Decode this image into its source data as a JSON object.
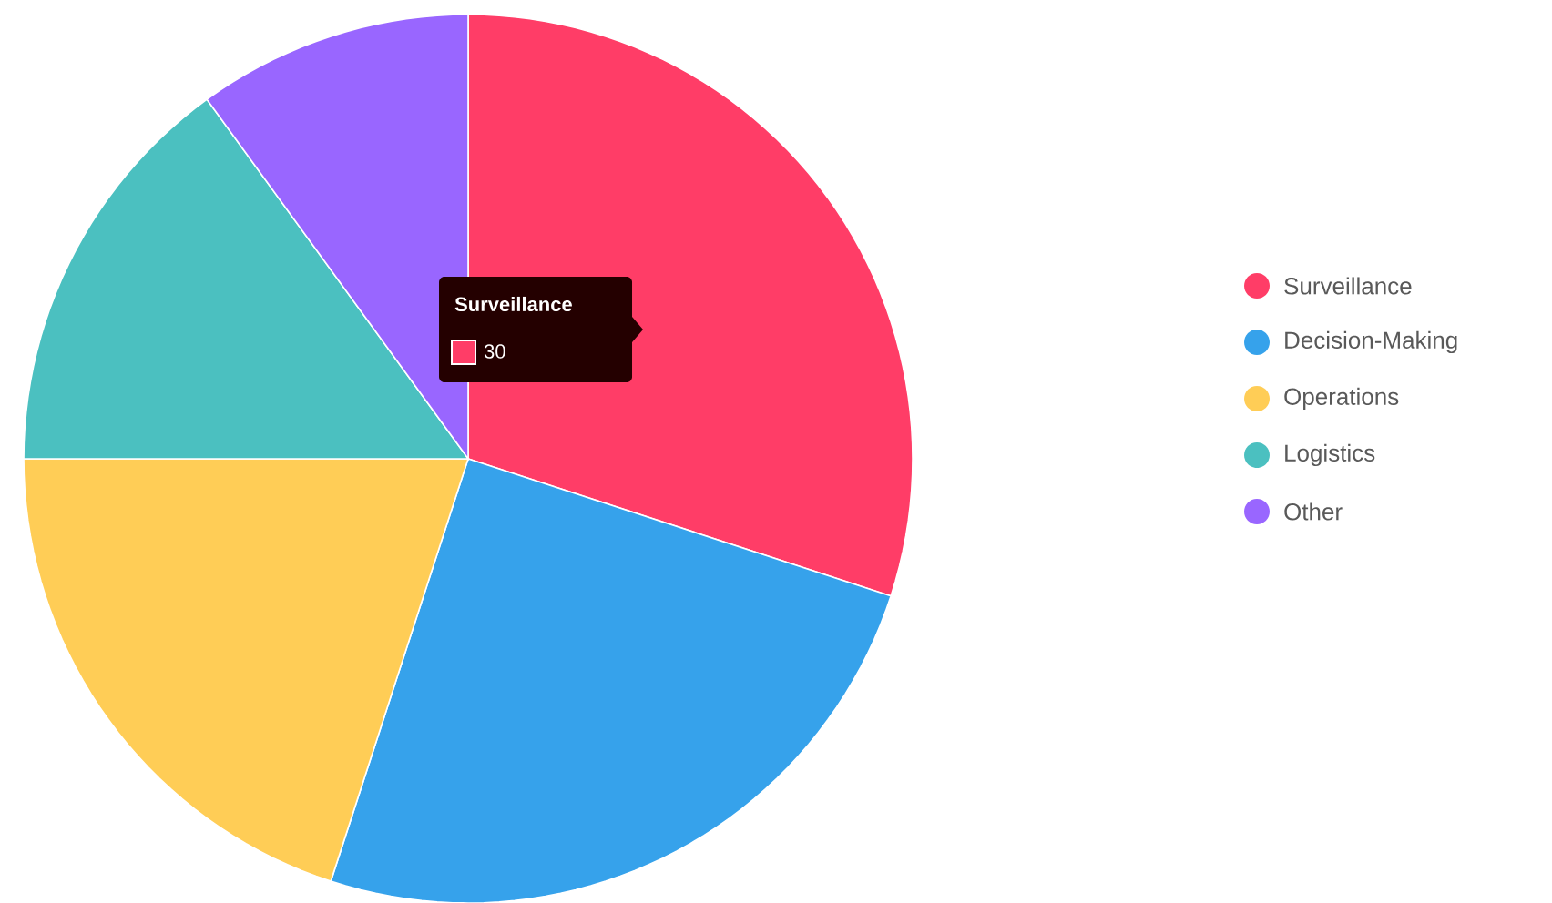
{
  "chart_data": {
    "type": "pie",
    "categories": [
      "Surveillance",
      "Decision-Making",
      "Operations",
      "Logistics",
      "Other"
    ],
    "values": [
      30,
      25,
      20,
      15,
      10
    ],
    "colors": [
      "#ff3d67",
      "#36a2eb",
      "#ffcd56",
      "#4bc0c0",
      "#9966ff"
    ],
    "legend": "right",
    "annotations": [
      {
        "text": "Surveillance"
      },
      {
        "text": "30"
      }
    ]
  }
}
